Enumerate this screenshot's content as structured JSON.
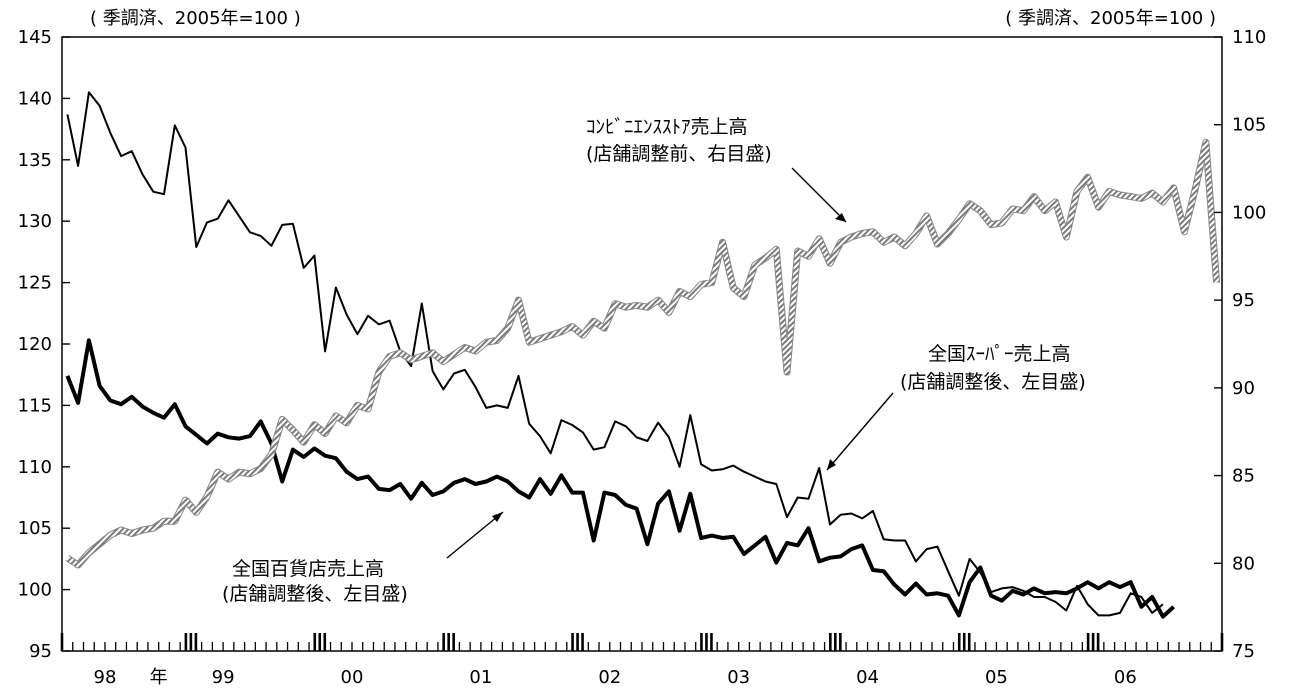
{
  "chart_data": {
    "type": "line",
    "left_axis": {
      "unit_label": "( 季調済、2005年=100 )",
      "range": [
        95,
        145
      ],
      "ticks": [
        145,
        140,
        135,
        130,
        125,
        120,
        115,
        110,
        105,
        100,
        95
      ]
    },
    "right_axis": {
      "unit_label": "( 季調済、2005年=100 )",
      "range": [
        75,
        110
      ],
      "ticks": [
        110,
        105,
        100,
        95,
        90,
        85,
        80,
        75
      ]
    },
    "x_axis": {
      "start": "1998-01",
      "end": "2006-12",
      "labels": [
        {
          "text": "98",
          "month": 4
        },
        {
          "text": "年",
          "month": 9
        },
        {
          "text": "99",
          "month": 15
        },
        {
          "text": "00",
          "month": 27
        },
        {
          "text": "01",
          "month": 39
        },
        {
          "text": "02",
          "month": 51
        },
        {
          "text": "03",
          "month": 63
        },
        {
          "text": "04",
          "month": 75
        },
        {
          "text": "05",
          "month": 87
        },
        {
          "text": "06",
          "month": 99
        }
      ]
    },
    "series": [
      {
        "name": "全国スーパー売上高",
        "axis": "left",
        "style": "thin",
        "start_month": 0,
        "values": [
          138.7,
          134.5,
          140.5,
          139.4,
          137.2,
          135.3,
          135.7,
          133.8,
          132.4,
          132.2,
          137.8,
          136.0,
          127.9,
          129.9,
          130.2,
          131.7,
          130.4,
          129.1,
          128.8,
          128.0,
          129.7,
          129.8,
          126.2,
          127.2,
          119.4,
          124.6,
          122.4,
          120.8,
          122.3,
          121.6,
          121.9,
          119.4,
          118.2,
          123.3,
          117.8,
          116.3,
          117.6,
          117.9,
          116.5,
          114.8,
          115.0,
          114.8,
          117.4,
          113.5,
          112.5,
          111.1,
          113.8,
          113.4,
          112.8,
          111.4,
          111.6,
          113.7,
          113.3,
          112.4,
          112.1,
          113.6,
          112.4,
          110.0,
          114.2,
          110.2,
          109.7,
          109.8,
          110.1,
          109.6,
          109.2,
          108.8,
          108.6,
          105.9,
          107.5,
          107.4,
          109.9,
          105.3,
          106.1,
          106.2,
          105.8,
          106.4,
          104.1,
          104.0,
          104.0,
          102.3,
          103.3,
          103.5,
          101.5,
          99.5,
          102.5,
          101.4,
          99.8,
          100.1,
          100.2,
          99.9,
          99.4,
          99.4,
          99.0,
          98.3,
          100.3,
          98.8,
          97.9,
          97.9,
          98.1,
          99.7,
          99.4,
          98.1,
          98.8
        ]
      },
      {
        "name": "全国百貨店売上高",
        "axis": "left",
        "style": "bold",
        "start_month": 0,
        "values": [
          117.4,
          115.2,
          120.3,
          116.6,
          115.4,
          115.1,
          115.7,
          114.9,
          114.4,
          114.0,
          115.1,
          113.3,
          112.6,
          111.9,
          112.7,
          112.4,
          112.3,
          112.5,
          113.7,
          111.9,
          108.8,
          111.4,
          110.8,
          111.5,
          110.9,
          110.7,
          109.6,
          109.0,
          109.2,
          108.2,
          108.1,
          108.6,
          107.4,
          108.7,
          107.7,
          108.0,
          108.7,
          109.0,
          108.6,
          108.8,
          109.2,
          108.8,
          108.0,
          107.5,
          109.0,
          107.8,
          109.3,
          107.9,
          107.9,
          104.0,
          107.9,
          107.7,
          106.9,
          106.6,
          103.7,
          107.0,
          108.0,
          104.8,
          107.8,
          104.2,
          104.4,
          104.2,
          104.3,
          102.9,
          103.6,
          104.3,
          102.2,
          103.8,
          103.6,
          105.0,
          102.3,
          102.6,
          102.7,
          103.3,
          103.6,
          101.6,
          101.5,
          100.4,
          99.6,
          100.5,
          99.6,
          99.7,
          99.5,
          97.9,
          100.6,
          101.8,
          99.5,
          99.1,
          99.9,
          99.6,
          100.1,
          99.7,
          99.8,
          99.7,
          100.1,
          100.6,
          100.1,
          100.6,
          100.2,
          100.6,
          98.6,
          99.4,
          97.8,
          98.6
        ]
      },
      {
        "name": "コンビニエンスストア売上高",
        "axis": "right",
        "style": "hatched",
        "start_month": 0,
        "values": [
          80.3,
          79.9,
          80.6,
          81.1,
          81.6,
          81.9,
          81.7,
          81.9,
          82.0,
          82.4,
          82.4,
          83.6,
          82.9,
          83.8,
          85.2,
          84.8,
          85.2,
          85.1,
          85.4,
          86.2,
          88.2,
          87.6,
          86.9,
          87.9,
          87.4,
          88.4,
          88.0,
          89.0,
          88.8,
          90.9,
          91.8,
          92.0,
          91.6,
          91.8,
          92.0,
          91.5,
          91.9,
          92.3,
          92.1,
          92.6,
          92.7,
          93.4,
          95.0,
          92.6,
          92.8,
          93.0,
          93.2,
          93.5,
          93.0,
          93.8,
          93.4,
          94.8,
          94.6,
          94.7,
          94.6,
          95.0,
          94.3,
          95.5,
          95.2,
          95.9,
          96.0,
          98.3,
          95.7,
          95.2,
          97.0,
          97.4,
          97.9,
          90.9,
          97.8,
          97.5,
          98.5,
          97.1,
          98.3,
          98.6,
          98.8,
          98.9,
          98.3,
          98.6,
          98.1,
          98.8,
          99.8,
          98.2,
          98.8,
          99.6,
          100.5,
          100.1,
          99.3,
          99.4,
          100.2,
          100.1,
          100.9,
          100.1,
          100.6,
          98.6,
          101.2,
          102.0,
          100.3,
          101.2,
          101.0,
          100.9,
          100.8,
          101.1,
          100.6,
          101.4,
          98.9,
          101.3,
          104.0,
          96.0
        ]
      }
    ],
    "annotations": [
      {
        "lines": [
          "ｺﾝﾋﾞﾆｴﾝｽｽﾄｱ売上高",
          "(店舗調整前、右目盛)"
        ]
      },
      {
        "lines": [
          "全国ｽｰﾊﾟｰ売上高",
          "(店舗調整後、左目盛)"
        ]
      },
      {
        "lines": [
          "全国百貨店売上高",
          "(店舗調整後、左目盛)"
        ]
      }
    ]
  }
}
